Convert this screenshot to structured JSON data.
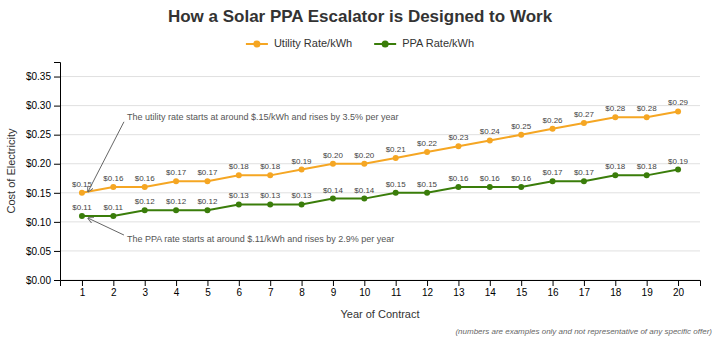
{
  "chart_data": {
    "type": "line",
    "title": "How a Solar PPA Escalator is Designed to Work",
    "x_label": "Year of Contract",
    "y_label": "Cost of Electricity",
    "x": [
      1,
      2,
      3,
      4,
      5,
      6,
      7,
      8,
      9,
      10,
      11,
      12,
      13,
      14,
      15,
      16,
      17,
      18,
      19,
      20
    ],
    "series": [
      {
        "name": "Utility Rate/kWh",
        "color": "#F5A623",
        "values": [
          0.15,
          0.16,
          0.16,
          0.17,
          0.17,
          0.18,
          0.18,
          0.19,
          0.2,
          0.2,
          0.21,
          0.22,
          0.23,
          0.24,
          0.25,
          0.26,
          0.27,
          0.28,
          0.28,
          0.29
        ],
        "value_labels": [
          "$0.15",
          "$0.16",
          "$0.16",
          "$0.17",
          "$0.17",
          "$0.18",
          "$0.18",
          "$0.19",
          "$0.20",
          "$0.20",
          "$0.21",
          "$0.22",
          "$0.23",
          "$0.24",
          "$0.25",
          "$0.26",
          "$0.27",
          "$0.28",
          "$0.28",
          "$0.29"
        ]
      },
      {
        "name": "PPA Rate/kWh",
        "color": "#3A7D0A",
        "values": [
          0.11,
          0.11,
          0.12,
          0.12,
          0.12,
          0.13,
          0.13,
          0.13,
          0.14,
          0.14,
          0.15,
          0.15,
          0.16,
          0.16,
          0.16,
          0.17,
          0.17,
          0.18,
          0.18,
          0.19
        ],
        "value_labels": [
          "$0.11",
          "$0.11",
          "$0.12",
          "$0.12",
          "$0.12",
          "$0.13",
          "$0.13",
          "$0.13",
          "$0.14",
          "$0.14",
          "$0.15",
          "$0.15",
          "$0.16",
          "$0.16",
          "$0.16",
          "$0.17",
          "$0.17",
          "$0.18",
          "$0.18",
          "$0.19"
        ]
      }
    ],
    "xlim": [
      0.3,
      20.7
    ],
    "xticks": [
      1,
      2,
      3,
      4,
      5,
      6,
      7,
      8,
      9,
      10,
      11,
      12,
      13,
      14,
      15,
      16,
      17,
      18,
      19,
      20
    ],
    "ylim": [
      0.0,
      0.375
    ],
    "yticks": [
      {
        "value": 0.0,
        "label": "$0.00"
      },
      {
        "value": 0.05,
        "label": "$0.05"
      },
      {
        "value": 0.1,
        "label": "$0.10"
      },
      {
        "value": 0.15,
        "label": "$0.15"
      },
      {
        "value": 0.2,
        "label": "$0.20"
      },
      {
        "value": 0.25,
        "label": "$0.25"
      },
      {
        "value": 0.3,
        "label": "$0.30"
      },
      {
        "value": 0.35,
        "label": "$0.35"
      }
    ],
    "grid": true,
    "legend": "top",
    "data_labels": true,
    "marker": "circle",
    "line_style": "solid",
    "annotations": [
      "The utility rate starts at around $.15/kWh and rises by 3.5% per year",
      "The PPA rate starts at around $.11/kWh and rises by 2.9% per year"
    ],
    "footnote": "(numbers are examples only and not representative of any specific offer)"
  }
}
